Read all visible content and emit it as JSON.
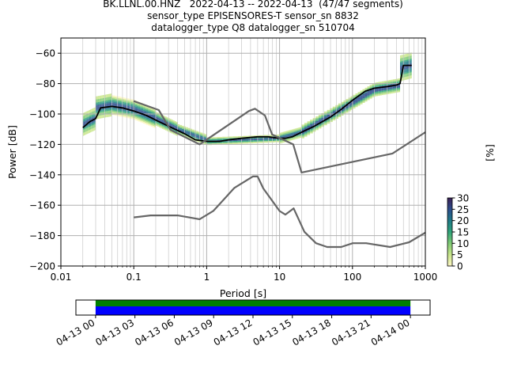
{
  "title_lines": [
    "BK.LLNL.00.HNZ   2022-04-13 -- 2022-04-13  (47/47 segments)",
    "sensor_type EPISENSORES-T sensor_sn 8832",
    "datalogger_type Q8 datalogger_sn 510704"
  ],
  "chart_data": [
    {
      "type": "heatmap",
      "xlabel": "Period [s]",
      "ylabel": "Power [dB]",
      "xscale": "log",
      "xlim": [
        0.01,
        1000
      ],
      "ylim": [
        -200,
        -50
      ],
      "xticks": [
        0.01,
        0.1,
        1,
        10,
        100,
        1000
      ],
      "xtick_labels": [
        "0.01",
        "0.1",
        "1",
        "10",
        "100",
        "1000"
      ],
      "yticks": [
        -200,
        -180,
        -160,
        -140,
        -120,
        -100,
        -80,
        -60
      ],
      "ytick_labels": [
        "−200",
        "−180",
        "−160",
        "−140",
        "−120",
        "−100",
        "−80",
        "−60"
      ],
      "grid": true,
      "colorbar": {
        "label": "[%]",
        "range": [
          0,
          30
        ],
        "ticks": [
          0,
          5,
          10,
          15,
          20,
          25,
          30
        ],
        "tick_labels": [
          "0",
          "5",
          "10",
          "15",
          "20",
          "25",
          "30"
        ],
        "colors": [
          "#fdf6c3",
          "#c8e58a",
          "#7fca74",
          "#2fa37a",
          "#1f7a87",
          "#2c4d8c",
          "#3b1f55"
        ]
      },
      "series": [
        {
          "name": "",
          "role": "mean PSD",
          "color": "#000000",
          "x": [
            0.02,
            0.025,
            0.03,
            0.035,
            0.05,
            0.07,
            0.1,
            0.15,
            0.2,
            0.3,
            0.5,
            0.7,
            1,
            1.5,
            2,
            3,
            5,
            7,
            10,
            12,
            15,
            20,
            30,
            50,
            70,
            100,
            150,
            200,
            300,
            400,
            450,
            500,
            550,
            650
          ],
          "values": [
            -109,
            -105,
            -103,
            -96,
            -95,
            -96,
            -98,
            -101,
            -104,
            -108,
            -113,
            -117,
            -118,
            -118,
            -117,
            -116,
            -115,
            -115,
            -116,
            -116,
            -115,
            -112,
            -108,
            -102,
            -97,
            -91,
            -85,
            -83,
            -82,
            -81,
            -80,
            -68,
            -68,
            -68
          ]
        },
        {
          "name": "",
          "role": "high noise model",
          "color": "#666666",
          "x": [
            0.1,
            0.22,
            0.32,
            0.8,
            3.8,
            4.6,
            6.3,
            7.9,
            15.4,
            20,
            354,
            1000
          ],
          "values": [
            -91.5,
            -97.4,
            -110.5,
            -120,
            -98,
            -96.5,
            -101,
            -113.5,
            -120,
            -138.5,
            -126,
            -112
          ]
        },
        {
          "name": "",
          "role": "low noise model",
          "color": "#666666",
          "x": [
            0.1,
            0.17,
            0.4,
            0.8,
            1.24,
            2.4,
            4.3,
            5,
            6,
            10,
            12,
            15.6,
            21.9,
            31.6,
            45,
            70,
            101,
            154,
            328,
            600,
            1000
          ],
          "values": [
            -168,
            -166.7,
            -166.7,
            -169.2,
            -163.7,
            -148.6,
            -141.1,
            -141.1,
            -149,
            -163.8,
            -166.2,
            -162.1,
            -177.5,
            -185,
            -187.5,
            -187.5,
            -185,
            -185,
            -187.5,
            -184.4,
            -178
          ]
        }
      ],
      "heatmap_bands": [
        {
          "x": [
            0.02,
            0.03
          ],
          "center": [
            -107,
            -103
          ],
          "spread": 6
        },
        {
          "x": [
            0.03,
            0.05
          ],
          "center": [
            -96,
            -94
          ],
          "spread": 6
        },
        {
          "x": [
            0.05,
            0.1
          ],
          "center": [
            -94,
            -97
          ],
          "spread": 5
        },
        {
          "x": [
            0.1,
            0.2
          ],
          "center": [
            -97,
            -103
          ],
          "spread": 5
        },
        {
          "x": [
            0.2,
            0.4
          ],
          "center": [
            -103,
            -110
          ],
          "spread": 4
        },
        {
          "x": [
            0.4,
            1
          ],
          "center": [
            -110,
            -117
          ],
          "spread": 3
        },
        {
          "x": [
            1,
            10
          ],
          "center": [
            -118,
            -116
          ],
          "spread": 2
        },
        {
          "x": [
            10,
            20
          ],
          "center": [
            -116,
            -112
          ],
          "spread": 3
        },
        {
          "x": [
            20,
            70
          ],
          "center": [
            -112,
            -97
          ],
          "spread": 4
        },
        {
          "x": [
            70,
            200
          ],
          "center": [
            -97,
            -84
          ],
          "spread": 4
        },
        {
          "x": [
            200,
            450
          ],
          "center": [
            -84,
            -81
          ],
          "spread": 4
        },
        {
          "x": [
            450,
            650
          ],
          "center": [
            -70,
            -68
          ],
          "spread": 7
        }
      ]
    },
    {
      "type": "bar",
      "role": "data coverage timeline",
      "xlim": [
        "2022-04-12 22:30",
        "2022-04-14 01:30"
      ],
      "tick_labels": [
        "04-13 00",
        "04-13 03",
        "04-13 06",
        "04-13 09",
        "04-13 12",
        "04-13 15",
        "04-13 18",
        "04-13 21",
        "04-14 00"
      ],
      "tick_hours": [
        0,
        3,
        6,
        9,
        12,
        15,
        18,
        21,
        24
      ],
      "bars": [
        {
          "name": "",
          "start_hour": 0,
          "end_hour": 24,
          "color": "#008000",
          "row": "top"
        },
        {
          "name": "",
          "start_hour": 0,
          "end_hour": 24,
          "color": "#0000ff",
          "row": "bottom"
        }
      ]
    }
  ]
}
